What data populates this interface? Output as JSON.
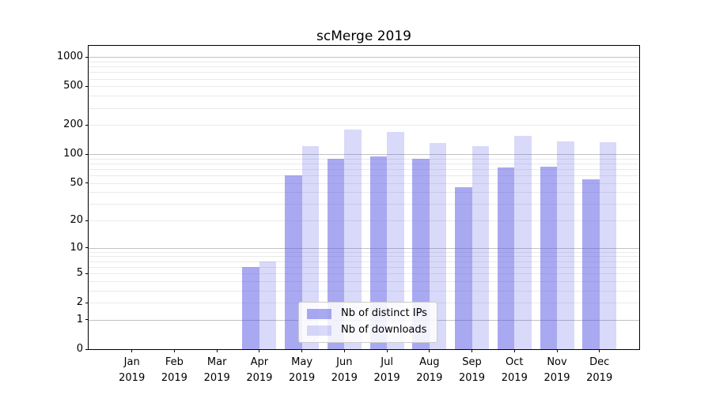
{
  "chart_data": {
    "type": "bar",
    "title": "scMerge 2019",
    "x_labels": [
      {
        "month": "Jan",
        "year": "2019"
      },
      {
        "month": "Feb",
        "year": "2019"
      },
      {
        "month": "Mar",
        "year": "2019"
      },
      {
        "month": "Apr",
        "year": "2019"
      },
      {
        "month": "May",
        "year": "2019"
      },
      {
        "month": "Jun",
        "year": "2019"
      },
      {
        "month": "Jul",
        "year": "2019"
      },
      {
        "month": "Aug",
        "year": "2019"
      },
      {
        "month": "Sep",
        "year": "2019"
      },
      {
        "month": "Oct",
        "year": "2019"
      },
      {
        "month": "Nov",
        "year": "2019"
      },
      {
        "month": "Dec",
        "year": "2019"
      }
    ],
    "series": [
      {
        "name": "Nb of distinct IPs",
        "color": "rgba(83,83,227,0.50)",
        "values": [
          0,
          0,
          0,
          6,
          60,
          90,
          95,
          90,
          45,
          73,
          74,
          55
        ]
      },
      {
        "name": "Nb of downloads",
        "color": "rgba(83,83,227,0.22)",
        "values": [
          0,
          0,
          0,
          7,
          120,
          180,
          170,
          130,
          122,
          155,
          135,
          133
        ]
      }
    ],
    "y_axis": {
      "scale": "log10(v+1)",
      "ticks": [
        1000,
        500,
        200,
        100,
        50,
        20,
        10,
        5,
        2,
        1,
        0
      ],
      "gridlines_major": [
        1,
        10,
        100,
        1000
      ],
      "gridlines_minor": [
        2,
        3,
        4,
        5,
        6,
        7,
        8,
        9,
        20,
        30,
        40,
        50,
        60,
        70,
        80,
        90,
        200,
        300,
        400,
        500,
        600,
        700,
        800,
        900
      ]
    },
    "legend_position": "lower center inside plot",
    "colors": {
      "grid_major": "#c2c2c2",
      "grid_minor": "#eaeaea",
      "spine": "#000000",
      "text": "#000000",
      "background": "#ffffff"
    }
  }
}
